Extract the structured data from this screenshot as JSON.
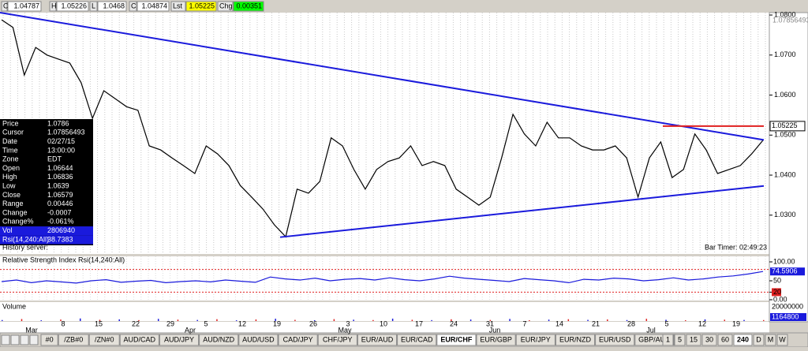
{
  "toolbar": {
    "fields": [
      {
        "label": "O",
        "value": "1.04787"
      },
      {
        "label": "H",
        "value": "1.05226"
      },
      {
        "label": "L",
        "value": "1.0468"
      },
      {
        "label": "C",
        "value": "1.04874"
      },
      {
        "label": "Lst",
        "value": "1.05225"
      },
      {
        "label": "Chg",
        "value": "0.00351"
      }
    ]
  },
  "price_chart": {
    "type": "line",
    "color": "#000000",
    "ylim": [
      1.0203,
      1.0806
    ],
    "yticks": [
      {
        "value": 1.08,
        "label": "1.0800"
      },
      {
        "value": 1.07,
        "label": "1.0700"
      },
      {
        "value": 1.06,
        "label": "1.0600"
      },
      {
        "value": 1.05,
        "label": "1.0500"
      },
      {
        "value": 1.04,
        "label": "1.0400"
      },
      {
        "value": 1.03,
        "label": "1.0300"
      }
    ],
    "cursor": {
      "value": 1.07856493,
      "label": "1.07856493"
    },
    "last": {
      "value": 1.05225,
      "label": "1.05225"
    },
    "values": [
      1.0788,
      1.0769,
      1.065,
      1.0719,
      1.07,
      1.069,
      1.068,
      1.0631,
      1.0542,
      1.0611,
      1.0591,
      1.0571,
      1.0562,
      1.0473,
      1.0463,
      1.0443,
      1.0424,
      1.0404,
      1.0473,
      1.0453,
      1.0424,
      1.0374,
      1.0345,
      1.0315,
      1.0276,
      1.0246,
      1.0365,
      1.0355,
      1.0384,
      1.0493,
      1.0473,
      1.0414,
      1.0365,
      1.0414,
      1.0434,
      1.0443,
      1.0473,
      1.0424,
      1.0434,
      1.0424,
      1.0365,
      1.0345,
      1.0325,
      1.0345,
      1.0443,
      1.0552,
      1.0503,
      1.0473,
      1.0532,
      1.0493,
      1.0493,
      1.0473,
      1.0463,
      1.0463,
      1.0473,
      1.0443,
      1.0345,
      1.0443,
      1.0483,
      1.0394,
      1.0414,
      1.0503,
      1.0463,
      1.0404,
      1.0414,
      1.0424,
      1.0453,
      1.04874
    ],
    "trendlines": [
      {
        "color": "#1a1adc",
        "start": 1.0806,
        "end": 1.0488
      },
      {
        "color": "#1a1adc",
        "start": 1.0245,
        "end": 1.0373
      },
      {
        "color": "#e02020",
        "start": 1.05225,
        "end": 1.05225
      }
    ],
    "history_label": "History server:",
    "bar_timer": "Bar Timer: 02:49:23"
  },
  "info_panel": {
    "rows": [
      [
        "Price",
        "1.0786"
      ],
      [
        "Cursor",
        "1.07856493"
      ],
      [
        "Date",
        "02/27/15"
      ],
      [
        "Time",
        "13:00:00"
      ],
      [
        "Zone",
        "EDT"
      ],
      [
        "Open",
        "1.06644"
      ],
      [
        "High",
        "1.06836"
      ],
      [
        "Low",
        "1.0639"
      ],
      [
        "Close",
        "1.06579"
      ],
      [
        "Range",
        "0.00446"
      ],
      [
        "Change",
        "-0.0007"
      ],
      [
        "Change%",
        "-0.061%"
      ],
      [
        "Vol",
        "2806940"
      ],
      [
        "Rsi(14,240:All)",
        "38.7383"
      ]
    ]
  },
  "rsi_panel": {
    "title": "Relative Strength Index Rsi(14,240:All)",
    "color": "#1a1adc",
    "ylim": [
      0,
      100
    ],
    "yticks": [
      {
        "value": 100,
        "label": "100.00"
      },
      50,
      20,
      {
        "value": 0,
        "label": "0.00"
      }
    ],
    "levels": [
      80,
      20
    ],
    "last": {
      "value": 74.5906,
      "label": "74.5906"
    },
    "values": [
      48,
      52,
      45,
      50,
      47,
      44,
      50,
      53,
      46,
      49,
      51,
      45,
      48,
      50,
      47,
      52,
      49,
      46,
      60,
      55,
      52,
      57,
      50,
      54,
      56,
      52,
      58,
      53,
      50,
      55,
      62,
      57,
      54,
      51,
      48,
      56,
      53,
      50,
      45,
      54,
      52,
      57,
      55,
      50,
      53,
      58,
      52,
      55,
      60,
      63,
      68,
      74.5906
    ]
  },
  "volume_panel": {
    "title": "Volume",
    "ylim": [
      0,
      20000000
    ],
    "yticks": [
      20000000
    ],
    "last": 1164800,
    "values": [
      1200000,
      2400000,
      900000,
      1800000,
      3100000,
      1500000,
      2000000,
      1100000,
      2600000,
      1700000,
      1300000,
      2200000,
      900000,
      1900000,
      2800000,
      1400000,
      1000000,
      2300000,
      1600000,
      1200000,
      2900000,
      1500000,
      1100000,
      2100000,
      1800000,
      1300000,
      2500000,
      1000000,
      1700000,
      2200000,
      1400000,
      1900000,
      1200000,
      2700000,
      1500000,
      1000000,
      2000000,
      1600000,
      1300000,
      1164800
    ]
  },
  "date_axis": {
    "days": [
      "8",
      "15",
      "22",
      "29",
      "5",
      "12",
      "19",
      "26",
      "3",
      "10",
      "17",
      "24",
      "31",
      "7",
      "14",
      "21",
      "28",
      "5",
      "12",
      "19"
    ],
    "months": [
      "Mar",
      "Apr",
      "May",
      "Jun",
      "Jul"
    ]
  },
  "tabs": [
    "#0",
    "/ZB#0",
    "/ZN#0",
    "AUD/CAD",
    "AUD/JPY",
    "AUD/NZD",
    "AUD/USD",
    "CAD/JPY",
    "CHF/JPY",
    "EUR/AUD",
    "EUR/CAD",
    "EUR/CHF",
    "EUR/GBP",
    "EUR/JPY",
    "EUR/NZD",
    "EUR/USD",
    "GBP/AUD"
  ],
  "active_tab": "EUR/CHF",
  "timeframes": [
    "1",
    "5",
    "15",
    "30",
    "60",
    "240",
    "D",
    "M",
    "W"
  ],
  "active_timeframe": "240"
}
